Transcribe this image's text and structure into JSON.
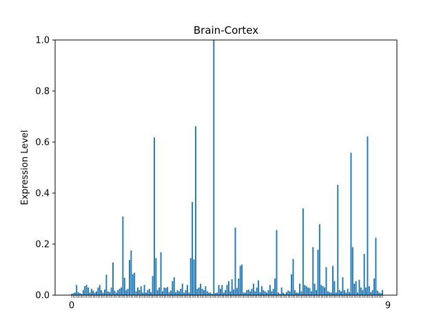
{
  "chart_data": {
    "type": "bar",
    "title": "Brain-Cortex",
    "xlabel": "",
    "ylabel": "Expression Level",
    "ylim": [
      0,
      1.0
    ],
    "yticks": [
      "0.0",
      "0.2",
      "0.4",
      "0.6",
      "0.8",
      "1.0"
    ],
    "xtick_edge_labels": {
      "first": "0",
      "last": "9"
    },
    "grid": false,
    "legend": "none",
    "bar_color": "#1f77b4",
    "values": [
      0.005,
      0.008,
      0.01,
      0.04,
      0.012,
      0.008,
      0.005,
      0.02,
      0.035,
      0.04,
      0.03,
      0.01,
      0.025,
      0.018,
      0.01,
      0.015,
      0.03,
      0.04,
      0.02,
      0.01,
      0.022,
      0.08,
      0.015,
      0.012,
      0.03,
      0.128,
      0.018,
      0.01,
      0.02,
      0.025,
      0.03,
      0.308,
      0.068,
      0.02,
      0.025,
      0.138,
      0.175,
      0.082,
      0.088,
      0.015,
      0.03,
      0.02,
      0.035,
      0.01,
      0.04,
      0.01,
      0.02,
      0.025,
      0.012,
      0.075,
      0.618,
      0.145,
      0.02,
      0.03,
      0.168,
      0.015,
      0.03,
      0.028,
      0.032,
      0.012,
      0.018,
      0.055,
      0.07,
      0.012,
      0.02,
      0.015,
      0.025,
      0.045,
      0.01,
      0.02,
      0.04,
      0.01,
      0.145,
      0.365,
      0.14,
      0.662,
      0.025,
      0.03,
      0.045,
      0.025,
      0.02,
      0.035,
      0.015,
      0.01,
      0.01,
      0.005,
      1.0,
      0.008,
      0.01,
      0.04,
      0.025,
      0.04,
      0.01,
      0.02,
      0.04,
      0.055,
      0.015,
      0.062,
      0.022,
      0.265,
      0.028,
      0.065,
      0.115,
      0.12,
      0.01,
      0.01,
      0.02,
      0.022,
      0.015,
      0.025,
      0.045,
      0.015,
      0.03,
      0.058,
      0.012,
      0.035,
      0.02,
      0.015,
      0.01,
      0.02,
      0.04,
      0.015,
      0.025,
      0.065,
      0.255,
      0.01,
      0.005,
      0.03,
      0.01,
      0.005,
      0.012,
      0.018,
      0.015,
      0.082,
      0.142,
      0.02,
      0.01,
      0.01,
      0.045,
      0.015,
      0.34,
      0.04,
      0.035,
      0.03,
      0.028,
      0.015,
      0.188,
      0.045,
      0.02,
      0.178,
      0.278,
      0.04,
      0.035,
      0.03,
      0.11,
      0.015,
      0.012,
      0.01,
      0.115,
      0.055,
      0.01,
      0.432,
      0.02,
      0.015,
      0.07,
      0.02,
      0.01,
      0.025,
      0.012,
      0.558,
      0.188,
      0.045,
      0.055,
      0.01,
      0.06,
      0.03,
      0.02,
      0.162,
      0.03,
      0.622,
      0.035,
      0.012,
      0.02,
      0.065,
      0.225,
      0.018,
      0.01,
      0.008,
      0.02
    ]
  }
}
